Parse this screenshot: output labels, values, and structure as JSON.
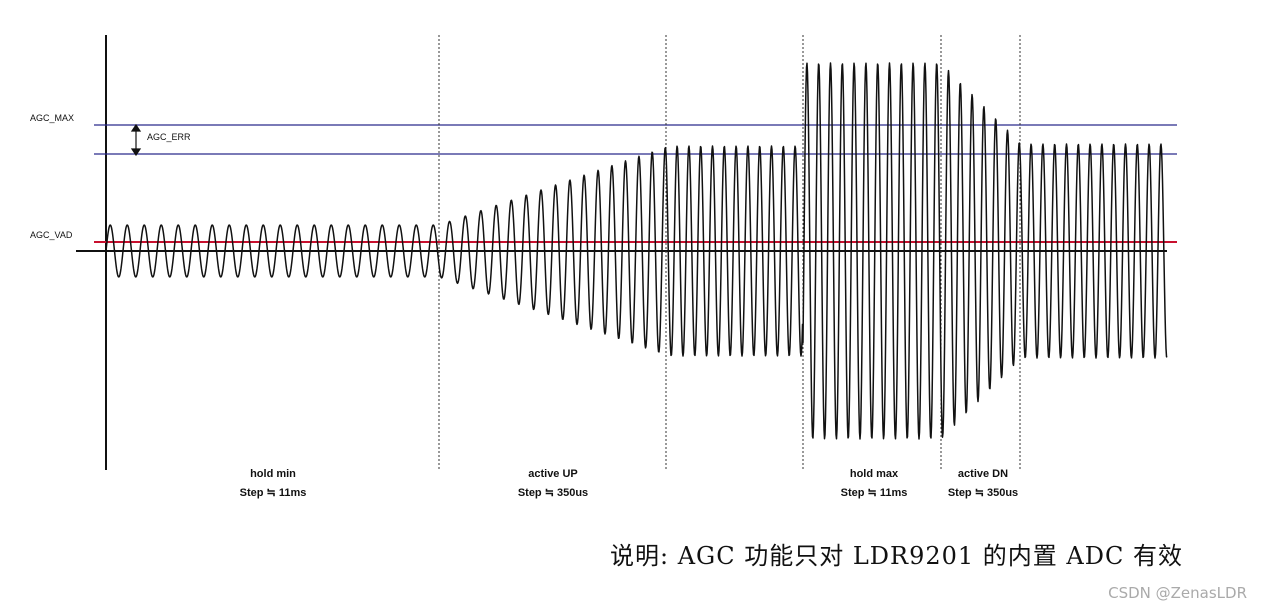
{
  "labels": {
    "agc_max": "AGC_MAX",
    "agc_err": "AGC_ERR",
    "agc_vad": "AGC_VAD"
  },
  "phases": [
    {
      "name": "hold min",
      "step": "Step ≒ 11ms"
    },
    {
      "name": "active UP",
      "step": "Step ≒ 350us"
    },
    {
      "name": "hold max",
      "step": "Step ≒ 11ms"
    },
    {
      "name": "active DN",
      "step": "Step ≒ 350us"
    }
  ],
  "caption": "说明: AGC 功能只对 LDR9201 的内置 ADC 有效",
  "watermark": "CSDN @ZenasLDR",
  "colors": {
    "limit_lines": "#2b2b8c",
    "vad_line": "#c8102e",
    "signal": "#111111"
  }
}
